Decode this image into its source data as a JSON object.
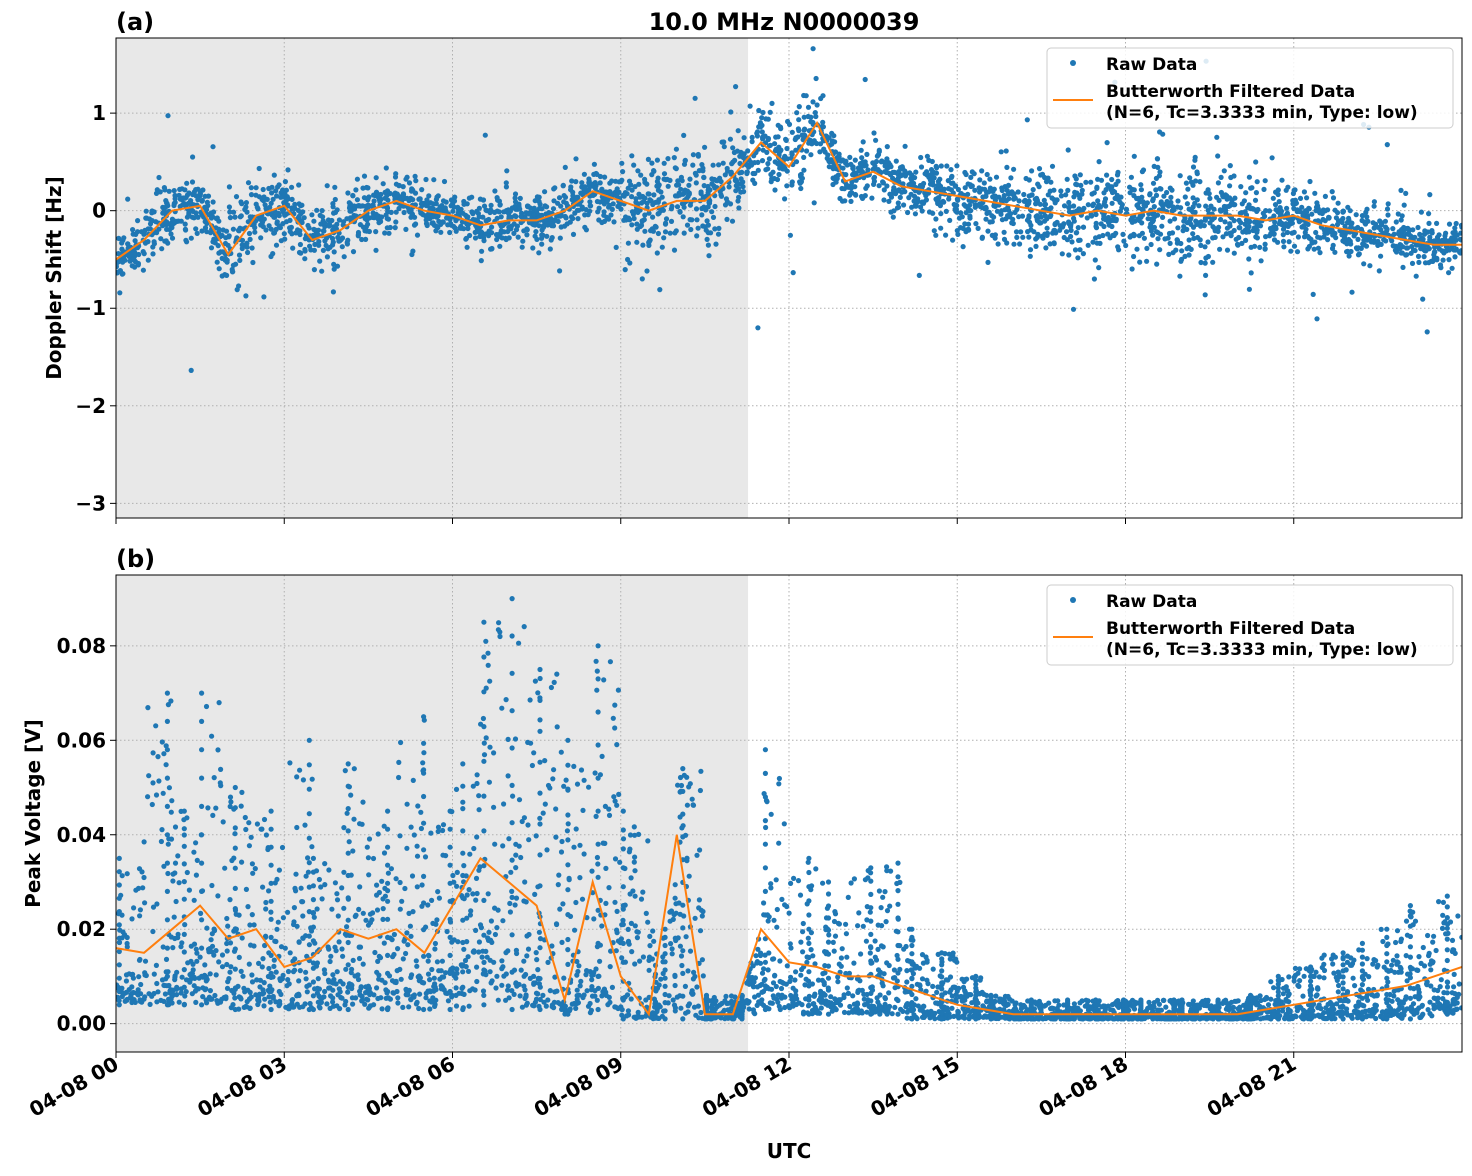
{
  "title": "10.0 MHz N0000039",
  "xlabel": "UTC",
  "x_tick_labels": [
    "04-08 00",
    "04-08 03",
    "04-08 06",
    "04-08 09",
    "04-08 12",
    "04-08 15",
    "04-08 18",
    "04-08 21"
  ],
  "colors": {
    "raw": "#1f77b4",
    "filtered": "#ff7f0e",
    "shade": "#e8e8e8",
    "grid": "#b0b0b0"
  },
  "legend": {
    "raw": "Raw Data",
    "filtered_line1": "Butterworth Filtered Data",
    "filtered_line2": "(N=6, Tc=3.3333 min, Type: low)",
    "placement": "upper-right"
  },
  "chart_data": [
    {
      "type": "scatter+line",
      "panel_label": "(a)",
      "ylabel": "Doppler Shift [Hz]",
      "xlim_hours": [
        0,
        24
      ],
      "ylim": [
        -3.15,
        1.77
      ],
      "y_ticks": [
        1,
        0,
        -1,
        -2,
        -3
      ],
      "y_tick_labels": [
        "1",
        "0",
        "−1",
        "−2",
        "−3"
      ],
      "grid": true,
      "shaded_region_hours": [
        0,
        11.27
      ],
      "x_hours": [
        0,
        0.5,
        1,
        1.5,
        2,
        2.5,
        3,
        3.5,
        4,
        4.5,
        5,
        5.5,
        6,
        6.5,
        7,
        7.5,
        8,
        8.5,
        9,
        9.5,
        10,
        10.5,
        11,
        11.5,
        12,
        12.5,
        13,
        13.5,
        14,
        14.5,
        15,
        15.5,
        16,
        16.5,
        17,
        17.5,
        18,
        18.5,
        19,
        19.5,
        20,
        20.5,
        21,
        21.5,
        22,
        22.5,
        23,
        23.5,
        24
      ],
      "filtered": [
        -0.5,
        -0.3,
        0.0,
        0.05,
        -0.45,
        -0.05,
        0.05,
        -0.3,
        -0.2,
        0.0,
        0.1,
        0.0,
        -0.05,
        -0.15,
        -0.1,
        -0.1,
        0.0,
        0.2,
        0.1,
        0.0,
        0.1,
        0.1,
        0.35,
        0.7,
        0.45,
        0.9,
        0.3,
        0.4,
        0.25,
        0.2,
        0.15,
        0.1,
        0.05,
        0.0,
        -0.05,
        0.0,
        -0.05,
        0.0,
        -0.05,
        -0.05,
        -0.05,
        -0.1,
        -0.05,
        -0.15,
        -0.2,
        -0.25,
        -0.3,
        -0.35,
        -0.35
      ],
      "raw_spread": [
        0.3,
        0.3,
        0.3,
        0.3,
        0.45,
        0.35,
        0.35,
        0.4,
        0.35,
        0.3,
        0.3,
        0.25,
        0.25,
        0.35,
        0.3,
        0.35,
        0.3,
        0.25,
        0.6,
        0.6,
        0.55,
        0.6,
        0.45,
        0.4,
        0.4,
        0.35,
        0.35,
        0.3,
        0.3,
        0.35,
        0.4,
        0.4,
        0.45,
        0.45,
        0.5,
        0.5,
        0.55,
        0.6,
        0.6,
        0.5,
        0.45,
        0.35,
        0.3,
        0.3,
        0.25,
        0.25,
        0.25,
        0.25,
        0.25
      ]
    },
    {
      "type": "scatter+line",
      "panel_label": "(b)",
      "ylabel": "Peak Voltage [V]",
      "xlim_hours": [
        0,
        24
      ],
      "ylim": [
        -0.006,
        0.095
      ],
      "y_ticks": [
        0,
        0.02,
        0.04,
        0.06,
        0.08
      ],
      "y_tick_labels": [
        "0.00",
        "0.02",
        "0.04",
        "0.06",
        "0.08"
      ],
      "grid": true,
      "shaded_region_hours": [
        0,
        11.27
      ],
      "x_hours": [
        0,
        0.5,
        1,
        1.5,
        2,
        2.5,
        3,
        3.5,
        4,
        4.5,
        5,
        5.5,
        6,
        6.5,
        7,
        7.5,
        8,
        8.5,
        9,
        9.5,
        10,
        10.5,
        11,
        11.5,
        12,
        12.5,
        13,
        13.5,
        14,
        14.5,
        15,
        15.5,
        16,
        16.5,
        17,
        17.5,
        18,
        18.5,
        19,
        19.5,
        20,
        20.5,
        21,
        21.5,
        22,
        22.5,
        23,
        23.5,
        24
      ],
      "filtered": [
        0.016,
        0.015,
        0.02,
        0.025,
        0.018,
        0.02,
        0.012,
        0.014,
        0.02,
        0.018,
        0.02,
        0.015,
        0.025,
        0.035,
        0.03,
        0.025,
        0.005,
        0.03,
        0.01,
        0.002,
        0.04,
        0.002,
        0.002,
        0.02,
        0.013,
        0.012,
        0.01,
        0.01,
        0.008,
        0.006,
        0.004,
        0.003,
        0.002,
        0.002,
        0.002,
        0.002,
        0.002,
        0.002,
        0.002,
        0.002,
        0.002,
        0.003,
        0.004,
        0.005,
        0.006,
        0.007,
        0.008,
        0.01,
        0.012
      ],
      "raw_max": [
        0.035,
        0.07,
        0.045,
        0.07,
        0.05,
        0.045,
        0.06,
        0.035,
        0.055,
        0.045,
        0.065,
        0.045,
        0.055,
        0.085,
        0.09,
        0.075,
        0.06,
        0.08,
        0.045,
        0.02,
        0.054,
        0.006,
        0.006,
        0.058,
        0.035,
        0.03,
        0.033,
        0.034,
        0.02,
        0.015,
        0.01,
        0.006,
        0.005,
        0.005,
        0.005,
        0.005,
        0.005,
        0.005,
        0.005,
        0.005,
        0.006,
        0.01,
        0.012,
        0.015,
        0.017,
        0.02,
        0.025,
        0.027,
        0.03
      ],
      "raw_min": [
        0.004,
        0.004,
        0.004,
        0.004,
        0.003,
        0.003,
        0.003,
        0.003,
        0.003,
        0.003,
        0.003,
        0.003,
        0.003,
        0.004,
        0.003,
        0.003,
        0.002,
        0.003,
        0.001,
        0.001,
        0.001,
        0.001,
        0.001,
        0.003,
        0.002,
        0.002,
        0.002,
        0.002,
        0.001,
        0.001,
        0.001,
        0.001,
        0.001,
        0.001,
        0.001,
        0.001,
        0.001,
        0.001,
        0.001,
        0.001,
        0.001,
        0.001,
        0.001,
        0.001,
        0.001,
        0.001,
        0.001,
        0.002,
        0.002
      ]
    }
  ]
}
